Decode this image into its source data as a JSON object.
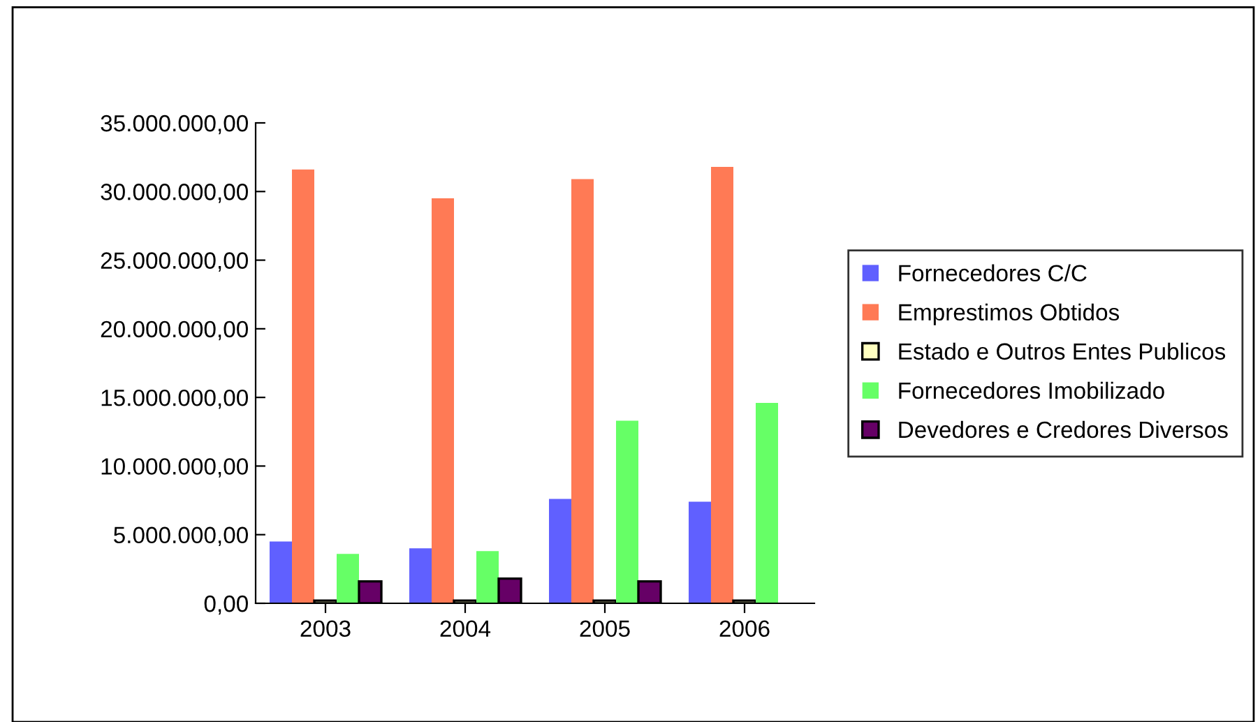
{
  "chart_data": {
    "type": "bar",
    "categories": [
      "2003",
      "2004",
      "2005",
      "2006"
    ],
    "series": [
      {
        "name": "Fornecedores C/C",
        "color": "#6060ff",
        "values": [
          4500000,
          4000000,
          7600000,
          7400000
        ]
      },
      {
        "name": "Emprestimos Obtidos",
        "color": "#ff7a55",
        "values": [
          31600000,
          29500000,
          30900000,
          31800000
        ]
      },
      {
        "name": "Estado e Outros Entes Publicos",
        "color": "#ffffc0",
        "values": [
          200000,
          200000,
          200000,
          200000
        ]
      },
      {
        "name": "Fornecedores Imobilizado",
        "color": "#66ff66",
        "values": [
          3600000,
          3800000,
          13300000,
          14600000
        ]
      },
      {
        "name": "Devedores e Credores Diversos",
        "color": "#660066",
        "values": [
          1600000,
          1800000,
          1600000,
          null
        ]
      }
    ],
    "ylim": [
      0,
      35000000
    ],
    "yticks": [
      {
        "value": 0,
        "label": "0,00"
      },
      {
        "value": 5000000,
        "label": "5.000.000,00"
      },
      {
        "value": 10000000,
        "label": "10.000.000,00"
      },
      {
        "value": 15000000,
        "label": "15.000.000,00"
      },
      {
        "value": 20000000,
        "label": "20.000.000,00"
      },
      {
        "value": 25000000,
        "label": "25.000.000,00"
      },
      {
        "value": 30000000,
        "label": "30.000.000,00"
      },
      {
        "value": 35000000,
        "label": "35.000.000,00"
      }
    ],
    "grid": false,
    "legend": "right"
  }
}
